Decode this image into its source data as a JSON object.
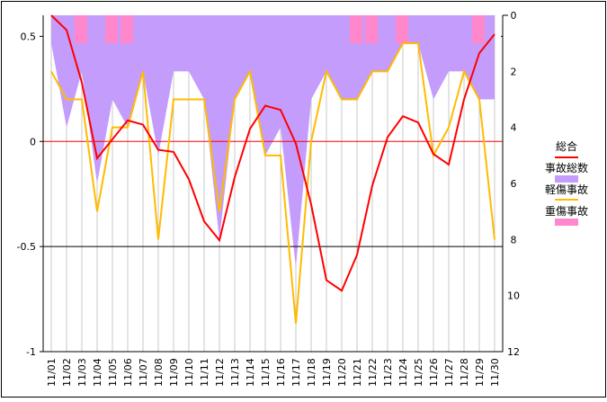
{
  "chart_data": {
    "type": "line",
    "title": "",
    "categories": [
      "11/01",
      "11/02",
      "11/03",
      "11/04",
      "11/05",
      "11/06",
      "11/07",
      "11/08",
      "11/09",
      "11/10",
      "11/11",
      "11/12",
      "11/13",
      "11/14",
      "11/15",
      "11/16",
      "11/17",
      "11/18",
      "11/19",
      "11/20",
      "11/21",
      "11/22",
      "11/23",
      "11/24",
      "11/25",
      "11/26",
      "11/27",
      "11/28",
      "11/29",
      "11/30"
    ],
    "left_axis": {
      "ylim": [
        -1,
        0.6
      ],
      "ticks": [
        0.5,
        0,
        -0.5,
        -1
      ],
      "tick_labels": [
        "0.5",
        "0",
        "-0.5",
        "-1"
      ]
    },
    "right_axis": {
      "ylim": [
        0,
        12
      ],
      "inverted": true,
      "ticks": [
        0,
        2,
        4,
        6,
        8,
        10,
        12
      ],
      "tick_labels": [
        "0",
        "2",
        "4",
        "6",
        "8",
        "10",
        "12"
      ]
    },
    "reference_lines": [
      {
        "value": 0,
        "color": "#ff0000"
      },
      {
        "value": -0.5,
        "color": "#000000"
      }
    ],
    "series": [
      {
        "name": "総合",
        "type": "line",
        "axis": "left",
        "color": "#ff0000",
        "values": [
          0.62,
          0.53,
          0.28,
          -0.08,
          0.01,
          0.1,
          0.08,
          -0.04,
          -0.05,
          -0.18,
          -0.38,
          -0.47,
          -0.17,
          0.06,
          0.17,
          0.15,
          -0.01,
          -0.3,
          -0.66,
          -0.71,
          -0.54,
          -0.21,
          0.02,
          0.12,
          0.09,
          -0.06,
          -0.11,
          0.2,
          0.42,
          0.51
        ]
      },
      {
        "name": "事故総数",
        "type": "area",
        "axis": "right",
        "color": "#c49cfc",
        "values": [
          1,
          4,
          2,
          6,
          3,
          4,
          2,
          5,
          2,
          2,
          3,
          8,
          3,
          2,
          5,
          4,
          9,
          3,
          2,
          3,
          3,
          2,
          2,
          1,
          1,
          3,
          2,
          2,
          3,
          3
        ]
      },
      {
        "name": "軽傷事故",
        "type": "line",
        "axis": "right",
        "color": "#ffbb00",
        "values": [
          2,
          3,
          3,
          7,
          4,
          4,
          2,
          8,
          3,
          3,
          3,
          7,
          3,
          2,
          5,
          5,
          11,
          4.5,
          2,
          3,
          3,
          2,
          2,
          1,
          1,
          5,
          4,
          2,
          3,
          8
        ]
      },
      {
        "name": "重傷事故",
        "type": "bar",
        "axis": "right",
        "color": "#ff88cc",
        "values": [
          0,
          0,
          1,
          0,
          1,
          1,
          0,
          0,
          0,
          0,
          0,
          0,
          0,
          0,
          0,
          0,
          0,
          0,
          0,
          0,
          1,
          1,
          0,
          1,
          0,
          0,
          0,
          0,
          1,
          0
        ]
      }
    ],
    "legend": {
      "placement": "right",
      "entries": [
        "総合",
        "事故総数",
        "軽傷事故",
        "重傷事故"
      ]
    }
  }
}
